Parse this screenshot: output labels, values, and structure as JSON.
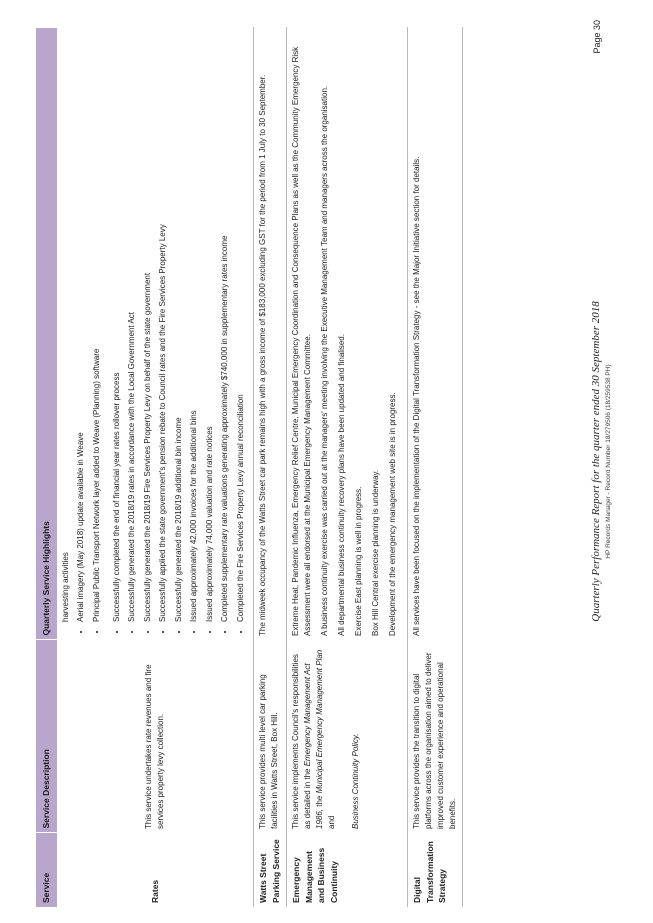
{
  "table": {
    "headers": [
      "Service",
      "Service Description",
      "Quarterly Service Highlights"
    ],
    "rates": {
      "service": "Rates",
      "description": "This service undertakes rate revenues and fire services property levy collection.",
      "highlights": [
        "harvesting activities",
        "Aerial imagery (May 2018) update available in Weave",
        "Principal Public Transport Network layer added to Weave (Planning) software",
        "Successfully completed the end of financial year rates rollover process",
        "Successfully generated the 2018/19 rates in accordance with the Local Government Act",
        "Successfully generated the 2018/19 Fire Services Property Levy on behalf of the state government",
        "Successfully applied the state government's pension rebate to Council rates and the Fire Services Property Levy",
        "Successfully generated the 2018/19 additional bin income",
        "Issued approximately 42,000 invoices for the additional bins",
        "Issued approximately 74,000 valuation and rate notices",
        "Completed supplementary rate valuations generating approximately $740,000 in supplementary rates income",
        "Completed the Fire Services Property Levy annual reconciliation"
      ]
    },
    "parking": {
      "service": "Watts Street Parking Service",
      "description": "This service provides multi level car parking facilities in Watts Street, Box Hill.",
      "highlight": "The midweek occupancy of the Watts Street car park remains high with a gross income of $183,000 excluding GST for the period from 1 July to 30 September."
    },
    "emergency": {
      "service": "Emergency Management and Business Continuity",
      "description_pre": "This service implements Council's responsibilities as detailed in the ",
      "description_act": "Emergency Management Act 1986,",
      "description_mid": " the ",
      "description_plan": "Municipal Emergency Management Plan",
      "description_and": " and ",
      "description_policy": "Business Continuity Policy.",
      "highlights": [
        "Extreme Heat, Pandemic Influenza, Emergency Relief Centre, Municipal Emergency Coordination and Consequence Plans as well as the Community Emergency Risk Assessment were all endorsed at the Municipal Emergency Management Committee.",
        "A business continuity exercise was carried out at the managers' meeting involving the Executive Management Team and managers across the organisation.",
        "All departmental business continuity recovery plans have been updated and finalised.",
        "Exercise East planning is well in progress.",
        "Box Hill Central exercise planning is underway.",
        "Development of the emergency management web site is in progress."
      ]
    },
    "digital": {
      "service": "Digital Transformation Strategy",
      "description": "This service provides the transition to digital platforms across the organisation aimed to deliver improved customer experience and operational benefits.",
      "highlight": "All services have been focused on the implementation of the Digital Transformation Strategy - see the Major Initiative section for details."
    }
  },
  "footer": {
    "title": "Quarterly Performance Report for the quarter ended 30 September 2018",
    "record": "HP Records Manager - Record Number 18/279506 (18/259538 PH)",
    "page": "Page 30"
  }
}
